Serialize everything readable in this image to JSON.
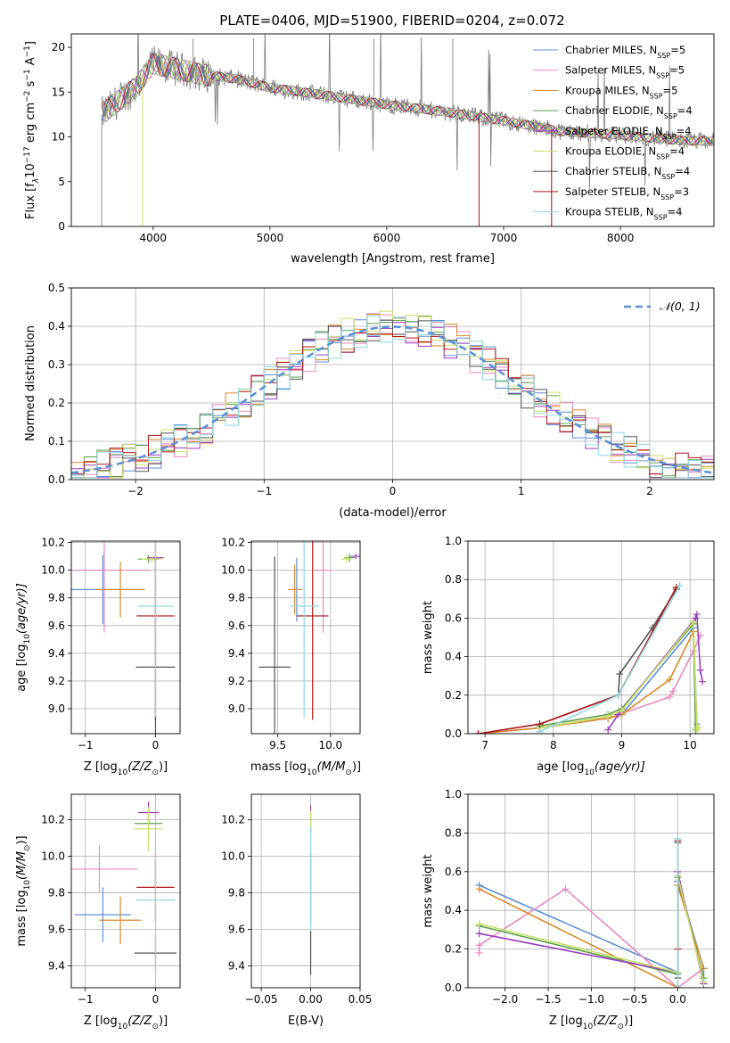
{
  "figure_title": "PLATE=0406, MJD=51900, FIBERID=0204, z=0.072",
  "colors": {
    "Chabrier MILES": "#5b8fd6",
    "Salpeter MILES": "#e98ac0",
    "Kroupa MILES": "#d98a2a",
    "Chabrier ELODIE": "#5fa04a",
    "Salpeter ELODIE": "#9b3fc0",
    "Kroupa ELODIE": "#c9e06a",
    "Chabrier STELIB": "#555555",
    "Salpeter STELIB": "#b01818",
    "Kroupa STELIB": "#8fd8e0",
    "data": "#7a7a7a",
    "normal": "#5b8fd6"
  },
  "chart_data": [
    {
      "id": "spectrum",
      "type": "line",
      "title": "PLATE=0406, MJD=51900, FIBERID=0204, z=0.072",
      "xlabel": "wavelength [Angstrom, rest frame]",
      "ylabel_parts": [
        "Flux [f",
        "λ",
        "10",
        "−17",
        " erg cm",
        "−2",
        " s",
        "−1",
        " A",
        "−1",
        "]"
      ],
      "xlim": [
        3300,
        8800
      ],
      "ylim": [
        0,
        21.5
      ],
      "xticks": [
        4000,
        5000,
        6000,
        7000,
        8000
      ],
      "yticks": [
        0,
        5,
        10,
        15,
        20
      ],
      "grid": false,
      "legend_position": "top-right",
      "legend": [
        {
          "main": "Chabrier MILES, N",
          "sub": "SSP",
          "tail": "=5"
        },
        {
          "main": "Salpeter MILES, N",
          "sub": "SSP",
          "tail": "=5"
        },
        {
          "main": "Kroupa MILES, N",
          "sub": "SSP",
          "tail": "=5"
        },
        {
          "main": "Chabrier ELODIE, N",
          "sub": "SSP",
          "tail": "=4"
        },
        {
          "main": "Salpeter ELODIE, N",
          "sub": "SSP",
          "tail": "=4"
        },
        {
          "main": "Kroupa ELODIE, N",
          "sub": "SSP",
          "tail": "=4"
        },
        {
          "main": "Chabrier STELIB, N",
          "sub": "SSP",
          "tail": "=4"
        },
        {
          "main": "Salpeter STELIB, N",
          "sub": "SSP",
          "tail": "=3"
        },
        {
          "main": "Kroupa STELIB, N",
          "sub": "SSP",
          "tail": "=4"
        }
      ],
      "model_trend": [
        {
          "x": 3560,
          "y": 12.5
        },
        {
          "x": 3700,
          "y": 14.0
        },
        {
          "x": 3850,
          "y": 15.5
        },
        {
          "x": 4000,
          "y": 18.2
        },
        {
          "x": 4200,
          "y": 17.6
        },
        {
          "x": 4400,
          "y": 17.0
        },
        {
          "x": 4700,
          "y": 16.5
        },
        {
          "x": 5000,
          "y": 15.5
        },
        {
          "x": 5500,
          "y": 14.6
        },
        {
          "x": 6000,
          "y": 13.6
        },
        {
          "x": 6500,
          "y": 12.8
        },
        {
          "x": 7000,
          "y": 11.8
        },
        {
          "x": 7500,
          "y": 10.6
        },
        {
          "x": 8000,
          "y": 10.2
        },
        {
          "x": 8500,
          "y": 9.6
        },
        {
          "x": 8800,
          "y": 9.5
        }
      ]
    },
    {
      "id": "residuals",
      "type": "step",
      "xlabel": "(data-model)/error",
      "ylabel": "Normed distribution",
      "xlim": [
        -2.5,
        2.5
      ],
      "ylim": [
        0,
        0.5
      ],
      "xticks": [
        -2,
        -1,
        0,
        1,
        2
      ],
      "yticks": [
        0.0,
        0.1,
        0.2,
        0.3,
        0.4,
        0.5
      ],
      "grid": true,
      "legend_position": "top-right",
      "legend": [
        "𝒩(0, 1)"
      ],
      "normal_sigma": 1
    },
    {
      "id": "age_vs_z",
      "type": "errorbar",
      "xlabel_main": "Z [log",
      "xlabel_sub": "10",
      "xlabel_tail": "(Z/Z",
      "xlabel_sun": "⊙",
      "xlabel_end": ")]",
      "ylabel_main": "age  [log",
      "ylabel_sub": "10",
      "ylabel_tail": "(age/yr)]",
      "xlim": [
        -1.2,
        0.35
      ],
      "ylim": [
        8.82,
        10.21
      ],
      "xticks": [
        -1,
        0
      ],
      "yticks": [
        9.0,
        9.2,
        9.4,
        9.6,
        9.8,
        10.0,
        10.2
      ],
      "grid": true,
      "points": [
        {
          "series": "Chabrier MILES",
          "x": -0.75,
          "xerr": 0.45,
          "y": 9.86,
          "yerr": 0.25
        },
        {
          "series": "Salpeter MILES",
          "x": -0.73,
          "xerr": 0.65,
          "y": 10.0,
          "yerr": 0.45
        },
        {
          "series": "Kroupa MILES",
          "x": -0.5,
          "xerr": 0.35,
          "y": 9.86,
          "yerr": 0.2
        },
        {
          "series": "Chabrier ELODIE",
          "x": -0.1,
          "xerr": 0.15,
          "y": 10.08,
          "yerr": 0.03
        },
        {
          "series": "Salpeter ELODIE",
          "x": 0.0,
          "xerr": 0.12,
          "y": 10.09,
          "yerr": 0.02
        },
        {
          "series": "Kroupa ELODIE",
          "x": -0.05,
          "xerr": 0.15,
          "y": 10.08,
          "yerr": 0.03
        },
        {
          "series": "Chabrier STELIB",
          "x": 0.0,
          "xerr": 0.28,
          "y": 9.3,
          "yerr": 0.8
        },
        {
          "series": "Salpeter STELIB",
          "x": 0.0,
          "xerr": 0.27,
          "y": 9.67,
          "yerr": 0.75
        },
        {
          "series": "Kroupa STELIB",
          "x": 0.0,
          "xerr": 0.25,
          "y": 9.74,
          "yerr": 0.8
        }
      ]
    },
    {
      "id": "age_vs_mass",
      "type": "errorbar",
      "xlabel_main": "mass [log",
      "xlabel_sub": "10",
      "xlabel_tail": "(M/M",
      "xlabel_sun": "⊙",
      "xlabel_end": ")]",
      "xlim": [
        9.25,
        10.28
      ],
      "ylim": [
        8.82,
        10.21
      ],
      "xticks": [
        9.5,
        10.0
      ],
      "xticklabels": [
        "9.5",
        "10.0"
      ],
      "yticks": [
        9.0,
        9.2,
        9.4,
        9.6,
        9.8,
        10.0,
        10.2
      ],
      "grid": true,
      "points": [
        {
          "series": "Chabrier MILES",
          "x": 9.68,
          "xerr": 0.05,
          "y": 9.86,
          "yerr": 0.23
        },
        {
          "series": "Salpeter MILES",
          "x": 9.93,
          "xerr": 0.08,
          "y": 10.0,
          "yerr": 0.45
        },
        {
          "series": "Kroupa MILES",
          "x": 9.66,
          "xerr": 0.06,
          "y": 9.86,
          "yerr": 0.18
        },
        {
          "series": "Chabrier ELODIE",
          "x": 10.18,
          "xerr": 0.05,
          "y": 10.09,
          "yerr": 0.03
        },
        {
          "series": "Salpeter ELODIE",
          "x": 10.24,
          "xerr": 0.05,
          "y": 10.1,
          "yerr": 0.02
        },
        {
          "series": "Kroupa ELODIE",
          "x": 10.15,
          "xerr": 0.05,
          "y": 10.08,
          "yerr": 0.03
        },
        {
          "series": "Chabrier STELIB",
          "x": 9.47,
          "xerr": 0.15,
          "y": 9.3,
          "yerr": 0.8
        },
        {
          "series": "Salpeter STELIB",
          "x": 9.83,
          "xerr": 0.15,
          "y": 9.67,
          "yerr": 0.75
        },
        {
          "series": "Kroupa STELIB",
          "x": 9.75,
          "xerr": 0.14,
          "y": 9.74,
          "yerr": 0.8
        }
      ]
    },
    {
      "id": "mass_weight_vs_age",
      "type": "line",
      "xlabel_main": "age  [log",
      "xlabel_sub": "10",
      "xlabel_tail": "(age/yr)]",
      "ylabel": "mass weight",
      "xlim": [
        6.75,
        10.35
      ],
      "ylim": [
        0,
        1.0
      ],
      "xticks": [
        7,
        8,
        9,
        10
      ],
      "yticks": [
        0.0,
        0.2,
        0.4,
        0.6,
        0.8,
        1.0
      ],
      "grid": true,
      "series": [
        {
          "name": "Chabrier MILES",
          "x": [
            6.9,
            7.8,
            8.8,
            9.0,
            10.05,
            10.1
          ],
          "y": [
            0.0,
            0.03,
            0.08,
            0.1,
            0.55,
            0.05
          ]
        },
        {
          "name": "Salpeter MILES",
          "x": [
            6.9,
            7.8,
            8.8,
            9.7,
            9.75,
            10.05,
            10.15
          ],
          "y": [
            0.0,
            0.03,
            0.08,
            0.19,
            0.22,
            0.43,
            0.51
          ]
        },
        {
          "name": "Kroupa MILES",
          "x": [
            6.9,
            7.8,
            8.8,
            9.0,
            9.7,
            10.05,
            10.1
          ],
          "y": [
            0.0,
            0.03,
            0.08,
            0.1,
            0.28,
            0.53,
            0.03
          ]
        },
        {
          "name": "Chabrier ELODIE",
          "x": [
            7.8,
            8.8,
            9.0,
            10.05,
            10.08,
            10.12
          ],
          "y": [
            0.04,
            0.1,
            0.13,
            0.57,
            0.02,
            0.03
          ]
        },
        {
          "name": "Salpeter ELODIE",
          "x": [
            8.8,
            8.95,
            10.08,
            10.1,
            10.15,
            10.18
          ],
          "y": [
            0.02,
            0.1,
            0.6,
            0.62,
            0.33,
            0.27
          ]
        },
        {
          "name": "Kroupa ELODIE",
          "x": [
            7.8,
            8.8,
            9.0,
            10.05,
            10.1,
            10.12
          ],
          "y": [
            0.03,
            0.09,
            0.12,
            0.58,
            0.02,
            0.03
          ]
        },
        {
          "name": "Chabrier STELIB",
          "x": [
            7.8,
            8.95,
            8.97,
            9.45,
            9.8
          ],
          "y": [
            0.05,
            0.2,
            0.31,
            0.55,
            0.75
          ]
        },
        {
          "name": "Salpeter STELIB",
          "x": [
            6.9,
            7.8,
            8.95,
            9.8
          ],
          "y": [
            0.0,
            0.05,
            0.2,
            0.76
          ]
        },
        {
          "name": "Kroupa STELIB",
          "x": [
            7.8,
            8.95,
            9.85
          ],
          "y": [
            0.01,
            0.2,
            0.77
          ]
        }
      ]
    },
    {
      "id": "mass_vs_z",
      "type": "errorbar",
      "xlabel_main": "Z [log",
      "xlabel_sub": "10",
      "xlabel_tail": "(Z/Z",
      "xlabel_sun": "⊙",
      "xlabel_end": ")]",
      "ylabel_main": "mass [log",
      "ylabel_sub": "10",
      "ylabel_tail": "(M/M",
      "ylabel_sun": "⊙",
      "ylabel_end": ")]",
      "xlim": [
        -1.2,
        0.35
      ],
      "ylim": [
        9.28,
        10.34
      ],
      "xticks": [
        -1,
        0
      ],
      "yticks": [
        9.4,
        9.6,
        9.8,
        10.0,
        10.2
      ],
      "grid": true,
      "points": [
        {
          "series": "Chabrier MILES",
          "x": -0.75,
          "xerr": 0.4,
          "y": 9.68,
          "yerr": 0.15
        },
        {
          "series": "Salpeter MILES",
          "x": -0.8,
          "xerr": 0.55,
          "y": 9.93,
          "yerr": 0.13
        },
        {
          "series": "Kroupa MILES",
          "x": -0.5,
          "xerr": 0.3,
          "y": 9.65,
          "yerr": 0.13
        },
        {
          "series": "Chabrier ELODIE",
          "x": -0.1,
          "xerr": 0.2,
          "y": 10.18,
          "yerr": 0.1
        },
        {
          "series": "Salpeter ELODIE",
          "x": -0.1,
          "xerr": 0.15,
          "y": 10.24,
          "yerr": 0.06
        },
        {
          "series": "Kroupa ELODIE",
          "x": -0.1,
          "xerr": 0.2,
          "y": 10.15,
          "yerr": 0.12
        },
        {
          "series": "Chabrier STELIB",
          "x": 0.0,
          "xerr": 0.3,
          "y": 9.47,
          "yerr": 0.1
        },
        {
          "series": "Salpeter STELIB",
          "x": 0.0,
          "xerr": 0.27,
          "y": 9.83,
          "yerr": 0.19
        },
        {
          "series": "Kroupa STELIB",
          "x": 0.0,
          "xerr": 0.28,
          "y": 9.76,
          "yerr": 0.4
        }
      ]
    },
    {
      "id": "mass_vs_ebv",
      "type": "errorbar",
      "xlabel": "E(B-V)",
      "xlim": [
        -0.06,
        0.05
      ],
      "ylim": [
        9.28,
        10.34
      ],
      "xticks": [
        -0.05,
        0.0,
        0.05
      ],
      "xticklabels": [
        "−0.05",
        "0.00",
        "0.05"
      ],
      "yticks": [
        9.4,
        9.6,
        9.8,
        10.0,
        10.2
      ],
      "grid": true,
      "points": [
        {
          "series": "Salpeter ELODIE",
          "x": 0.0,
          "xerr": 0.0,
          "y": 10.2,
          "yerr": 0.08
        },
        {
          "series": "Kroupa ELODIE",
          "x": 0.0,
          "xerr": 0.0,
          "y": 10.15,
          "yerr": 0.1
        },
        {
          "series": "Salpeter STELIB",
          "x": 0.0,
          "xerr": 0.0,
          "y": 9.83,
          "yerr": 0.2
        },
        {
          "series": "Kroupa STELIB",
          "x": 0.0,
          "xerr": 0.0,
          "y": 9.76,
          "yerr": 0.4
        },
        {
          "series": "Chabrier STELIB",
          "x": 0.0,
          "xerr": 0.0,
          "y": 9.47,
          "yerr": 0.12
        }
      ]
    },
    {
      "id": "mass_weight_vs_z",
      "type": "line",
      "xlabel_main": "Z [log",
      "xlabel_sub": "10",
      "xlabel_tail": "(Z/Z",
      "xlabel_sun": "⊙",
      "xlabel_end": ")]",
      "ylabel": "mass weight",
      "xlim": [
        -2.43,
        0.42
      ],
      "ylim": [
        0,
        1.0
      ],
      "xticks": [
        -2.0,
        -1.5,
        -1.0,
        -0.5,
        0.0
      ],
      "xticklabels": [
        "−2.0",
        "−1.5",
        "−1.0",
        "−0.5",
        "0.0"
      ],
      "yticks": [
        0.0,
        0.2,
        0.4,
        0.6,
        0.8,
        1.0
      ],
      "grid": true,
      "series": [
        {
          "name": "Chabrier MILES",
          "x": [
            -2.3,
            0.0,
            0.0,
            0.3,
            0.3
          ],
          "y": [
            0.53,
            0.08,
            0.55,
            0.1,
            0.03
          ]
        },
        {
          "name": "Salpeter MILES",
          "x": [
            -2.3,
            -2.3,
            -1.3,
            0.0,
            0.3
          ],
          "y": [
            0.18,
            0.22,
            0.51,
            0.0,
            0.1
          ]
        },
        {
          "name": "Kroupa MILES",
          "x": [
            -2.3,
            0.0,
            0.0,
            0.3
          ],
          "y": [
            0.51,
            0.0,
            0.53,
            0.1
          ]
        },
        {
          "name": "Chabrier ELODIE",
          "x": [
            -2.3,
            0.0,
            0.0,
            0.3
          ],
          "y": [
            0.32,
            0.07,
            0.57,
            0.05
          ]
        },
        {
          "name": "Salpeter ELODIE",
          "x": [
            -2.3,
            0.0,
            0.0,
            0.3
          ],
          "y": [
            0.28,
            0.08,
            0.6,
            0.02
          ]
        },
        {
          "name": "Kroupa ELODIE",
          "x": [
            -2.3,
            0.0,
            0.0,
            0.3
          ],
          "y": [
            0.33,
            0.08,
            0.58,
            0.03
          ]
        },
        {
          "name": "Chabrier STELIB",
          "x": [
            0.0,
            0.0
          ],
          "y": [
            0.05,
            0.75
          ]
        },
        {
          "name": "Salpeter STELIB",
          "x": [
            0.0,
            0.0
          ],
          "y": [
            0.2,
            0.76
          ]
        },
        {
          "name": "Kroupa STELIB",
          "x": [
            0.0,
            0.0
          ],
          "y": [
            0.01,
            0.77
          ]
        }
      ]
    }
  ]
}
